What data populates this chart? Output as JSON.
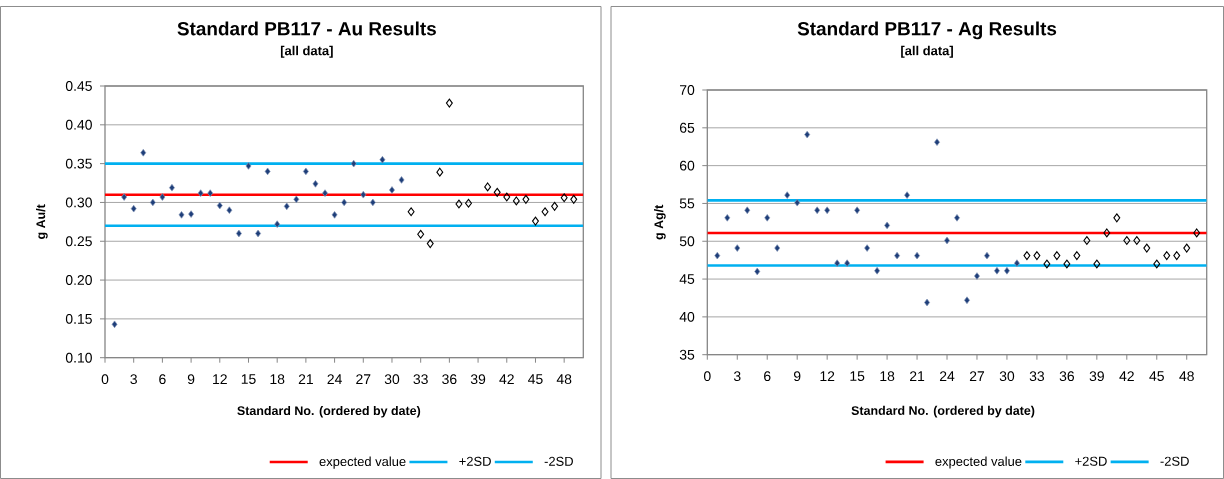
{
  "chart_data": [
    {
      "type": "scatter",
      "title": "Standard PB117 - Au Results",
      "subtitle": "[all data]",
      "xlabel": "Standard No. (ordered by date)",
      "ylabel": "g Au/t",
      "series": [
        {
          "color": "#1f3f7a",
          "x": [
            1,
            2,
            3,
            4,
            5,
            6,
            7,
            8,
            9,
            10,
            11,
            12,
            13,
            14,
            15,
            16,
            17,
            18,
            19,
            20,
            21,
            22,
            23,
            24,
            25,
            26,
            27,
            28,
            29,
            30,
            31
          ],
          "values": [
            0.143,
            0.307,
            0.292,
            0.364,
            0.3,
            0.307,
            0.319,
            0.284,
            0.285,
            0.312,
            0.312,
            0.296,
            0.29,
            0.26,
            0.347,
            0.26,
            0.34,
            0.272,
            0.295,
            0.304,
            0.34,
            0.324,
            0.312,
            0.284,
            0.3,
            0.35,
            0.31,
            0.3,
            0.355,
            0.316,
            0.329
          ]
        },
        {
          "color": "#000000",
          "x": [
            32,
            33,
            34,
            35,
            36,
            37,
            38,
            40,
            41,
            42,
            43,
            44,
            45,
            46,
            47,
            48,
            49
          ],
          "values": [
            0.288,
            0.259,
            0.247,
            0.339,
            0.428,
            0.298,
            0.299,
            0.32,
            0.313,
            0.307,
            0.302,
            0.304,
            0.276,
            0.288,
            0.295,
            0.306,
            0.304
          ]
        }
      ],
      "xlim": [
        0,
        50
      ],
      "xticks": [
        0,
        3,
        6,
        9,
        12,
        15,
        18,
        21,
        24,
        27,
        30,
        33,
        36,
        39,
        42,
        45,
        48
      ],
      "ylim": [
        0.1,
        0.45
      ],
      "yticks": [
        {
          "value": 0.1,
          "label": "0.10"
        },
        0.15,
        {
          "value": 0.2,
          "label": "0.20"
        },
        0.25,
        {
          "value": 0.3,
          "label": "0.30"
        },
        0.35,
        {
          "value": 0.4,
          "label": "0.40"
        },
        0.45
      ],
      "ref_lines": [
        {
          "axis": "y",
          "value": 0.31,
          "label": "expected value",
          "color": "#ff0000"
        },
        {
          "axis": "y",
          "value": 0.35,
          "label": "+2SD",
          "color": "#00b0f0"
        },
        {
          "axis": "y",
          "value": 0.27,
          "label": "-2SD",
          "color": "#00b0f0"
        }
      ],
      "grid": "y",
      "legend": "bottom",
      "marker": "diamond"
    },
    {
      "type": "scatter",
      "title": "Standard PB117 - Ag Results",
      "subtitle": "[all data]",
      "xlabel": "Standard No. (ordered by date)",
      "ylabel": "g Ag/t",
      "series": [
        {
          "color": "#1f3f7a",
          "x": [
            1,
            2,
            3,
            4,
            5,
            6,
            7,
            8,
            9,
            10,
            11,
            12,
            13,
            14,
            15,
            16,
            17,
            18,
            19,
            20,
            21,
            22,
            23,
            24,
            25,
            26,
            27,
            28,
            29,
            30,
            31
          ],
          "values": [
            48.1,
            53.1,
            49.1,
            54.1,
            46.0,
            53.1,
            49.1,
            56.1,
            55.1,
            64.1,
            54.1,
            54.1,
            47.1,
            47.1,
            54.1,
            49.1,
            46.1,
            52.1,
            48.1,
            56.1,
            48.1,
            41.9,
            63.1,
            50.1,
            53.1,
            42.2,
            45.4,
            48.1,
            46.1,
            46.1,
            47.1
          ]
        },
        {
          "color": "#000000",
          "x": [
            32,
            33,
            34,
            35,
            36,
            37,
            38,
            39,
            40,
            41,
            42,
            43,
            44,
            45,
            46,
            47,
            48,
            49
          ],
          "values": [
            48.1,
            48.1,
            47.0,
            48.1,
            47.0,
            48.1,
            50.1,
            47.0,
            51.1,
            53.1,
            50.1,
            50.1,
            49.1,
            47.0,
            48.1,
            48.1,
            49.1,
            51.1
          ]
        }
      ],
      "xlim": [
        0,
        50
      ],
      "xticks": [
        0,
        3,
        6,
        9,
        12,
        15,
        18,
        21,
        24,
        27,
        30,
        33,
        36,
        39,
        42,
        45,
        48
      ],
      "ylim": [
        35,
        70
      ],
      "yticks": [
        35,
        40,
        45,
        50,
        55,
        60,
        65,
        70
      ],
      "ref_lines": [
        {
          "axis": "y",
          "value": 51.1,
          "label": "expected value",
          "color": "#ff0000"
        },
        {
          "axis": "y",
          "value": 55.4,
          "label": "+2SD",
          "color": "#00b0f0"
        },
        {
          "axis": "y",
          "value": 46.8,
          "label": "-2SD",
          "color": "#00b0f0"
        }
      ],
      "grid": "y",
      "legend": "bottom",
      "marker": "diamond"
    }
  ]
}
